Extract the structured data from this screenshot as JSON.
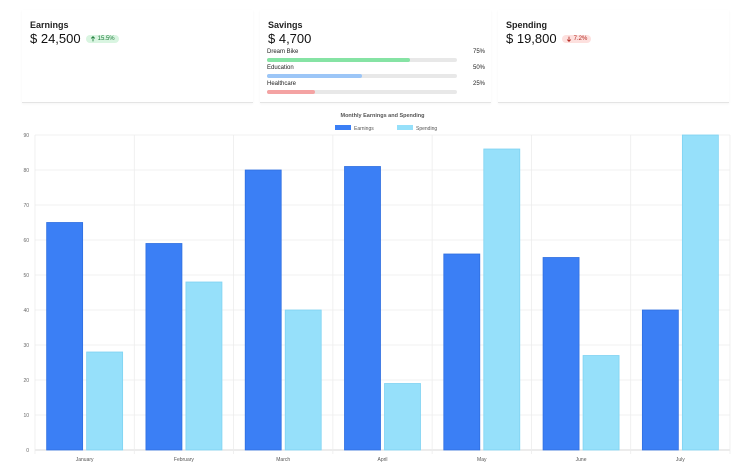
{
  "earnings": {
    "title": "Earnings",
    "amount": "$ 24,500",
    "change": "15.5%",
    "direction": "up"
  },
  "savings": {
    "title": "Savings",
    "amount": "$ 4,700",
    "goals": [
      {
        "label": "Dream Bike",
        "percent_label": "75%",
        "value": 75,
        "color": "#86e3a4"
      },
      {
        "label": "Education",
        "percent_label": "50%",
        "value": 50,
        "color": "#9cc6f7"
      },
      {
        "label": "Healthcare",
        "percent_label": "25%",
        "value": 25,
        "color": "#f4a3a3"
      }
    ]
  },
  "spending": {
    "title": "Spending",
    "amount": "$ 19,800",
    "change": "7.2%",
    "direction": "down"
  },
  "colors": {
    "earnings": "#3b7ff5",
    "spending": "#96e0fa",
    "grid": "#ececec",
    "axis": "#cccccc"
  },
  "chart_data": {
    "type": "bar",
    "title": "Monthly Earnings and Spending",
    "categories": [
      "January",
      "February",
      "March",
      "April",
      "May",
      "June",
      "July"
    ],
    "series": [
      {
        "name": "Earnings",
        "values": [
          65,
          59,
          80,
          81,
          56,
          55,
          40
        ]
      },
      {
        "name": "Spending",
        "values": [
          28,
          48,
          40,
          19,
          86,
          27,
          90
        ]
      }
    ],
    "ylim": [
      0,
      90
    ],
    "yticks": [
      0,
      10,
      20,
      30,
      40,
      50,
      60,
      70,
      80,
      90
    ],
    "xlabel": "",
    "ylabel": "",
    "legend": "top-center",
    "grid": true
  }
}
